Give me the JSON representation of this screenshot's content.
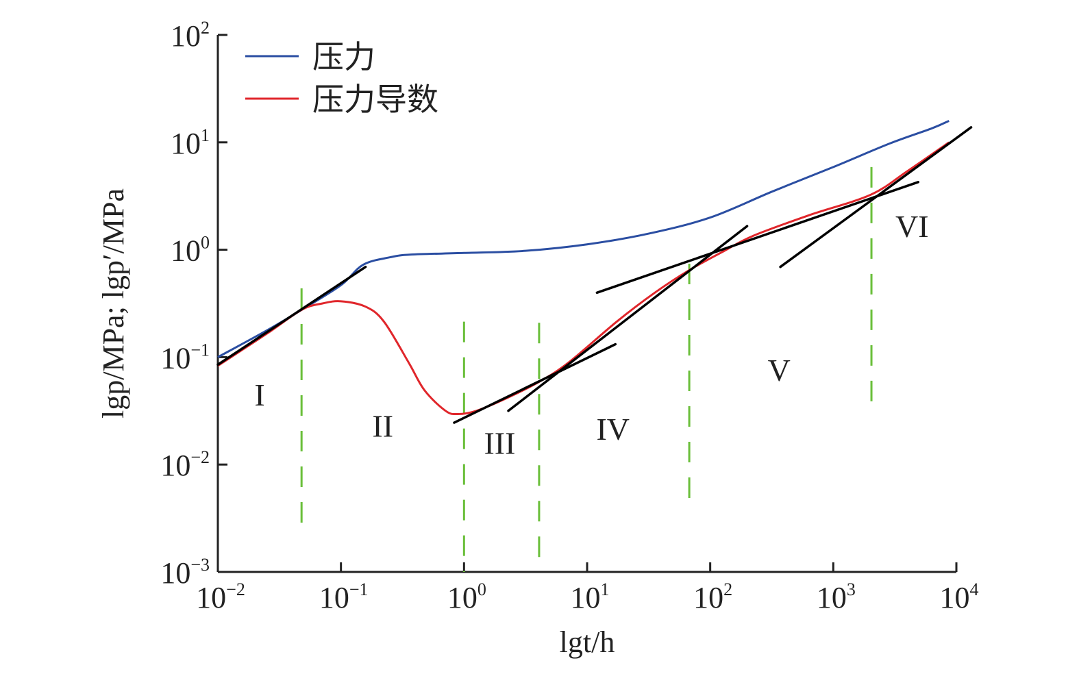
{
  "chart_data": {
    "type": "line",
    "title": "",
    "xlabel": "lgt/h",
    "ylabel": "lgp/MPa; lgp′/MPa",
    "xscale": "log",
    "yscale": "log",
    "xlim_log10": [
      -2,
      4
    ],
    "ylim_log10": [
      -3,
      2
    ],
    "x_ticks": [
      {
        "base": "10",
        "exp": "−2"
      },
      {
        "base": "10",
        "exp": "−1"
      },
      {
        "base": "10",
        "exp": "0"
      },
      {
        "base": "10",
        "exp": "1"
      },
      {
        "base": "10",
        "exp": "2"
      },
      {
        "base": "10",
        "exp": "3"
      },
      {
        "base": "10",
        "exp": "4"
      }
    ],
    "y_ticks": [
      {
        "base": "10",
        "exp": "−3"
      },
      {
        "base": "10",
        "exp": "−2"
      },
      {
        "base": "10",
        "exp": "−1"
      },
      {
        "base": "10",
        "exp": "0"
      },
      {
        "base": "10",
        "exp": "1"
      },
      {
        "base": "10",
        "exp": "2"
      }
    ],
    "grid": false,
    "legend_position": "top-left",
    "series": [
      {
        "name": "压力",
        "color": "#2b4ea2",
        "points_log10": [
          [
            -2,
            -1.0
          ],
          [
            -1.6,
            -0.75
          ],
          [
            -1.32,
            -0.56
          ],
          [
            -1.0,
            -0.33
          ],
          [
            -0.82,
            -0.14
          ],
          [
            -0.6,
            -0.07
          ],
          [
            -0.43,
            -0.045
          ],
          [
            0,
            -0.03
          ],
          [
            0.5,
            -0.01
          ],
          [
            1,
            0.05
          ],
          [
            1.5,
            0.15
          ],
          [
            2,
            0.3
          ],
          [
            2.5,
            0.54
          ],
          [
            3,
            0.77
          ],
          [
            3.46,
            0.99
          ],
          [
            3.8,
            1.13
          ],
          [
            3.94,
            1.2
          ]
        ]
      },
      {
        "name": "压力导数",
        "color": "#e0262b",
        "points_log10": [
          [
            -2,
            -1.08
          ],
          [
            -1.6,
            -0.78
          ],
          [
            -1.32,
            -0.56
          ],
          [
            -1.15,
            -0.5
          ],
          [
            -1.0,
            -0.48
          ],
          [
            -0.8,
            -0.53
          ],
          [
            -0.65,
            -0.67
          ],
          [
            -0.45,
            -1.05
          ],
          [
            -0.32,
            -1.31
          ],
          [
            -0.15,
            -1.5
          ],
          [
            -0.05,
            -1.53
          ],
          [
            0.1,
            -1.5
          ],
          [
            0.35,
            -1.38
          ],
          [
            0.61,
            -1.23
          ],
          [
            0.85,
            -1.05
          ],
          [
            1.24,
            -0.67
          ],
          [
            1.55,
            -0.4
          ],
          [
            1.83,
            -0.19
          ],
          [
            2.1,
            -0.02
          ],
          [
            2.35,
            0.13
          ],
          [
            2.8,
            0.32
          ],
          [
            3.3,
            0.51
          ],
          [
            3.6,
            0.73
          ],
          [
            3.94,
            1.0
          ]
        ]
      }
    ],
    "tangent_lines_log10": [
      [
        [
          -2,
          -1.07
        ],
        [
          -0.8,
          -0.16
        ]
      ],
      [
        [
          -0.08,
          -1.61
        ],
        [
          1.23,
          -0.88
        ]
      ],
      [
        [
          0.36,
          -1.5
        ],
        [
          2.3,
          0.22
        ]
      ],
      [
        [
          1.08,
          -0.4
        ],
        [
          3.69,
          0.63
        ]
      ],
      [
        [
          2.57,
          -0.16
        ],
        [
          4.12,
          1.14
        ]
      ]
    ],
    "boundaries_log10": [
      {
        "x": -1.32,
        "y": [
          -2.63,
          -0.36
        ]
      },
      {
        "x": 0.0,
        "y": [
          -3.0,
          -0.67
        ]
      },
      {
        "x": 0.61,
        "y": [
          -3.0,
          -0.68
        ]
      },
      {
        "x": 1.83,
        "y": [
          -2.39,
          -0.13
        ]
      },
      {
        "x": 3.31,
        "y": [
          -1.5,
          0.77
        ]
      }
    ],
    "regions": [
      {
        "label": "I",
        "x_log10": -1.66,
        "y_log10": -1.45
      },
      {
        "label": "II",
        "x_log10": -0.66,
        "y_log10": -1.74
      },
      {
        "label": "III",
        "x_log10": 0.29,
        "y_log10": -1.9
      },
      {
        "label": "IV",
        "x_log10": 1.21,
        "y_log10": -1.77
      },
      {
        "label": "V",
        "x_log10": 2.56,
        "y_log10": -1.22
      },
      {
        "label": "VI",
        "x_log10": 3.64,
        "y_log10": 0.12
      }
    ],
    "colors": {
      "tangent": "#000000",
      "boundary": "#6abf3a",
      "axis": "#222222"
    }
  }
}
